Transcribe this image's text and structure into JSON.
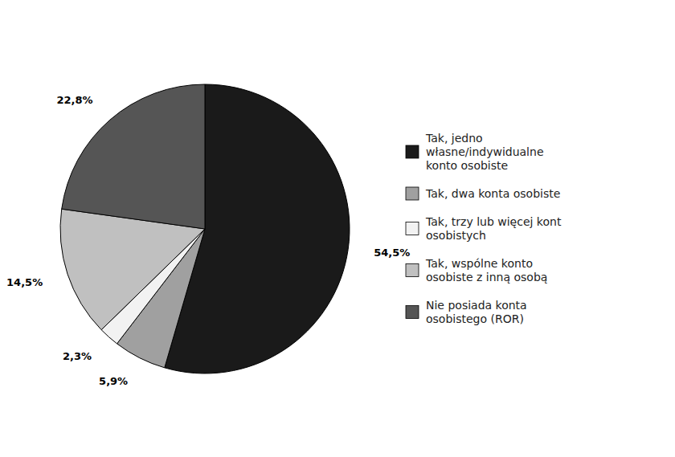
{
  "chart_data": {
    "type": "pie",
    "categories": [
      "Tak, jedno\nwłasne/indywidualne\nkonto osobiste",
      "Tak, dwa konta osobiste",
      "Tak, trzy lub więcej kont\nosobistych",
      "Tak, wspólne konto\nosobiste z inną osobą",
      "Nie posiada konta\nosobistego (ROR)"
    ],
    "values": [
      54.5,
      5.9,
      2.3,
      14.5,
      22.8
    ],
    "value_labels": [
      "54,5%",
      "5,9%",
      "2,3%",
      "14,5%",
      "22,8%"
    ],
    "colors": [
      "#1a1a1a",
      "#a0a0a0",
      "#f2f2f2",
      "#c0c0c0",
      "#555555"
    ],
    "data_labels": true,
    "legend": "right"
  }
}
